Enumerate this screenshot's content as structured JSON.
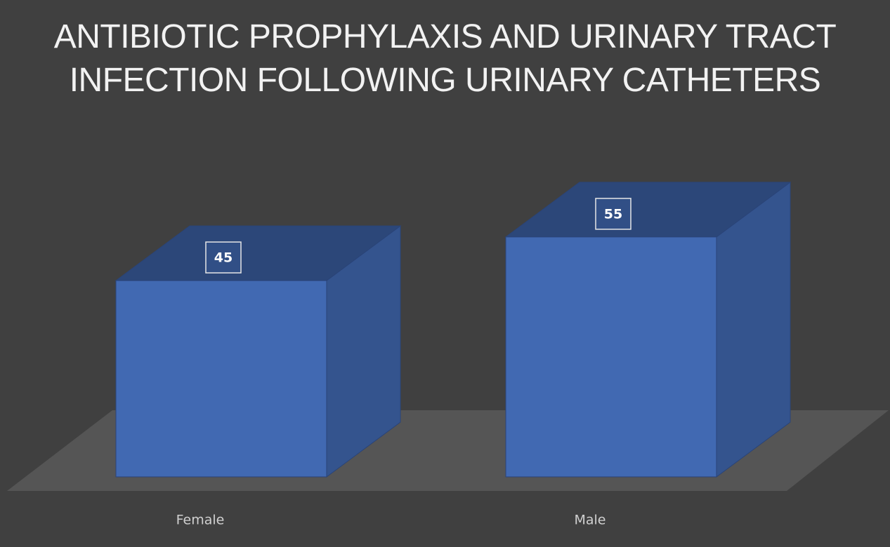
{
  "chart_data": {
    "type": "bar3d",
    "title": "ANTIBIOTIC PROPHYLAXIS AND URINARY TRACT INFECTION FOLLOWING URINARY CATHETERS",
    "categories": [
      "Female",
      "Male"
    ],
    "values": [
      45,
      55
    ],
    "color": "#4169b2"
  }
}
